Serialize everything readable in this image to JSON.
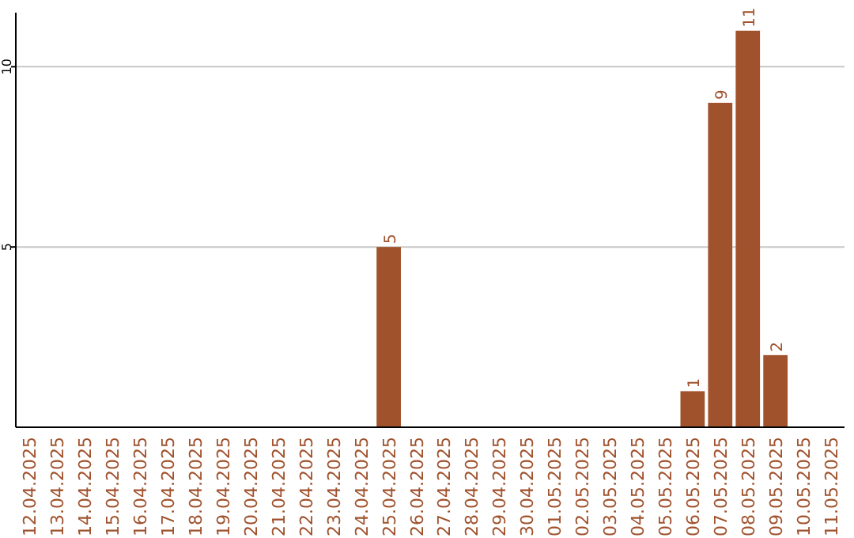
{
  "chart_data": {
    "type": "bar",
    "categories": [
      "12.04.2025",
      "13.04.2025",
      "14.04.2025",
      "15.04.2025",
      "16.04.2025",
      "17.04.2025",
      "18.04.2025",
      "19.04.2025",
      "20.04.2025",
      "21.04.2025",
      "22.04.2025",
      "23.04.2025",
      "24.04.2025",
      "25.04.2025",
      "26.04.2025",
      "27.04.2025",
      "28.04.2025",
      "29.04.2025",
      "30.04.2025",
      "01.05.2025",
      "02.05.2025",
      "03.05.2025",
      "04.05.2025",
      "05.05.2025",
      "06.05.2025",
      "07.05.2025",
      "08.05.2025",
      "09.05.2025",
      "10.05.2025",
      "11.05.2025"
    ],
    "values": [
      0,
      0,
      0,
      0,
      0,
      0,
      0,
      0,
      0,
      0,
      0,
      0,
      0,
      5,
      0,
      0,
      0,
      0,
      0,
      0,
      0,
      0,
      0,
      0,
      1,
      9,
      11,
      2,
      0,
      0
    ],
    "value_labels": [
      null,
      null,
      null,
      null,
      null,
      null,
      null,
      null,
      null,
      null,
      null,
      null,
      null,
      "5",
      null,
      null,
      null,
      null,
      null,
      null,
      null,
      null,
      null,
      null,
      "1",
      "9",
      "11",
      "2",
      null,
      null
    ],
    "color": "#a0522d",
    "ylim": [
      0,
      11.5
    ],
    "yticks": [
      5,
      10
    ],
    "grid": "y"
  }
}
